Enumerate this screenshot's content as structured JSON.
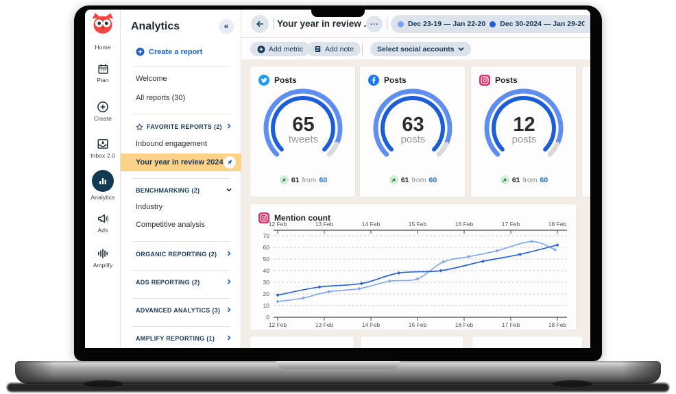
{
  "nav_rail": {
    "items": [
      {
        "label": "Home"
      },
      {
        "label": "Plan"
      },
      {
        "label": "Create"
      },
      {
        "label": "Inbox 2.0"
      },
      {
        "label": "Analytics",
        "active": true
      },
      {
        "label": "Ads"
      },
      {
        "label": "Amplify"
      }
    ]
  },
  "sidebar": {
    "title": "Analytics",
    "collapse_icon": "«",
    "create_report": "Create a report",
    "welcome": "Welcome",
    "all_reports": "All reports (30)",
    "favorites_header": "FAVORITE REPORTS (2)",
    "inbound": "Inbound engagement",
    "year_review": "Your year in review 2024",
    "benchmarking_header": "BENCHMARKING (2)",
    "industry": "Industry",
    "competitive": "Competitive analysis",
    "organic_header": "ORGANIC REPORTING (2)",
    "ads_header": "ADS REPORTING (2)",
    "advanced_header": "ADVANCED ANALYTICS (3)",
    "amplify_header": "AMPLIFY REPORTING (1)"
  },
  "header": {
    "title": "Your year in review ..",
    "more_label": "...",
    "date_ranges": [
      {
        "label": "Dec 23-19 — Jan 22-20",
        "dot_color": "#7b9ff5"
      },
      {
        "label": "Dec 30-2024 — Jan 29-20",
        "dot_color": "#1e5fd6"
      }
    ]
  },
  "toolbar": {
    "add_metric": "Add metric",
    "add_note": "Add note",
    "select_accounts": "Select social accounts"
  },
  "gauges": [
    {
      "network": "twitter",
      "title": "Posts",
      "value": "65",
      "unit": "tweets",
      "delta": {
        "current": "61",
        "joiner": "from",
        "previous": "60"
      }
    },
    {
      "network": "facebook",
      "title": "Posts",
      "value": "63",
      "unit": "posts",
      "delta": {
        "current": "61",
        "joiner": "from",
        "previous": "60"
      }
    },
    {
      "network": "instagram",
      "title": "Posts",
      "value": "12",
      "unit": "posts",
      "delta": {
        "current": "61",
        "joiner": "from",
        "previous": "60"
      }
    },
    {
      "network": "linkedin",
      "partial": true
    }
  ],
  "chart_data": {
    "type": "line",
    "title": "Mention count",
    "network": "instagram",
    "x_axis": {
      "tick_labels": [
        "12 Feb",
        "13 Feb",
        "14 Feb",
        "15 Feb",
        "16 Feb",
        "17 Feb",
        "18 Feb"
      ],
      "range_days": [
        12,
        18
      ],
      "axis_positions": "top and bottom"
    },
    "y_axis": {
      "ticks": [
        0,
        10,
        20,
        30,
        40,
        50,
        60,
        70
      ],
      "range": [
        0,
        70
      ]
    },
    "grid": "dashed-horizontal",
    "legend": "none",
    "series": [
      {
        "name": "Dec 30-2024 — Jan 29-20",
        "color": "#2a63d4",
        "x": [
          12,
          12.9,
          13.8,
          14.6,
          15.5,
          16.4,
          17.2,
          18
        ],
        "values": [
          19,
          26,
          29,
          38,
          40,
          48,
          54,
          62
        ]
      },
      {
        "name": "Dec 23-19 — Jan 22-20",
        "color": "#82a7f0",
        "x": [
          12,
          12.55,
          13.1,
          13.75,
          14.4,
          15.0,
          15.55,
          16.1,
          16.7,
          17.45,
          17.95
        ],
        "values": [
          13.5,
          16.5,
          22,
          24.5,
          31,
          33,
          47.5,
          52,
          57,
          65,
          58
        ]
      }
    ]
  },
  "colors": {
    "accent_blue": "#1d62c9",
    "navy": "#17395c",
    "highlight_yellow": "#fbd288",
    "gauge_outer": "#5f8eee",
    "gauge_inner": "#1d5ed6",
    "gauge_rest": "#d9d9d9",
    "positive_green": "#1e7e34"
  }
}
